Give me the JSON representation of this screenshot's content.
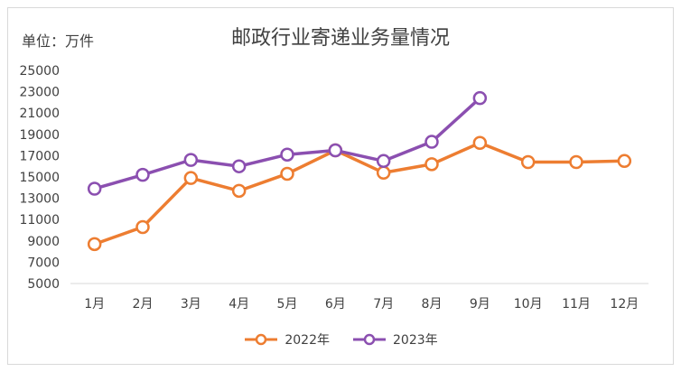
{
  "unit_label": "单位：万件",
  "chart_data": {
    "type": "line",
    "title": "邮政行业寄递业务量情况",
    "categories": [
      "1月",
      "2月",
      "3月",
      "4月",
      "5月",
      "6月",
      "7月",
      "8月",
      "9月",
      "10月",
      "11月",
      "12月"
    ],
    "ylim": [
      5000,
      25000
    ],
    "yticks": [
      5000,
      7000,
      9000,
      11000,
      13000,
      15000,
      17000,
      19000,
      21000,
      23000,
      25000
    ],
    "grid": false,
    "legend": "bottom",
    "series": [
      {
        "name": "2022年",
        "color": "#ED7D31",
        "values": [
          8700,
          10300,
          14900,
          13700,
          15300,
          17500,
          15400,
          16200,
          18200,
          16400,
          16400,
          16500
        ]
      },
      {
        "name": "2023年",
        "color": "#8B4FB0",
        "values": [
          13900,
          15200,
          16600,
          16000,
          17100,
          17500,
          16500,
          18300,
          22400,
          null,
          null,
          null
        ]
      }
    ]
  }
}
